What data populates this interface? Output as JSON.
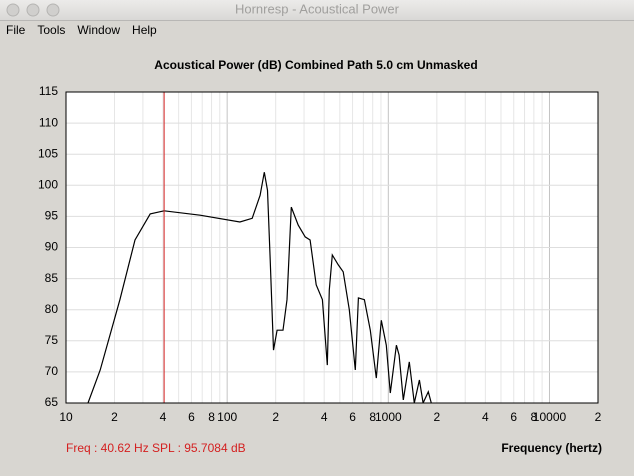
{
  "window": {
    "title": "Hornresp - Acoustical Power",
    "menu": [
      "File",
      "Tools",
      "Window",
      "Help"
    ]
  },
  "chart_data": {
    "type": "line",
    "title": "Acoustical Power (dB)   Combined   Path 5.0 cm   Unmasked",
    "xlabel": "Frequency (hertz)",
    "xscale": "log",
    "xlim": [
      10,
      20000
    ],
    "ylim": [
      65,
      115
    ],
    "yticks": [
      65,
      70,
      75,
      80,
      85,
      90,
      95,
      100,
      105,
      110,
      115
    ],
    "xticks": [
      10,
      {
        "value": 20,
        "label": "2"
      },
      {
        "value": 40,
        "label": "4"
      },
      {
        "value": 60,
        "label": "6"
      },
      {
        "value": 80,
        "label": "8"
      },
      100,
      {
        "value": 200,
        "label": "2"
      },
      {
        "value": 400,
        "label": "4"
      },
      {
        "value": 600,
        "label": "6"
      },
      {
        "value": 800,
        "label": "8"
      },
      1000,
      {
        "value": 2000,
        "label": "2"
      },
      {
        "value": 4000,
        "label": "4"
      },
      {
        "value": 6000,
        "label": "6"
      },
      {
        "value": 8000,
        "label": "8"
      },
      10000,
      {
        "value": 20000,
        "label": "2"
      }
    ],
    "xminor": [
      30,
      50,
      70,
      90,
      300,
      500,
      700,
      900,
      3000,
      5000,
      7000,
      9000
    ],
    "grid": true,
    "color": "#000000",
    "x": [
      13.7,
      16.3,
      21.6,
      26.8,
      33.3,
      40.6,
      67.9,
      120,
      143,
      160,
      170,
      178,
      185,
      194,
      204,
      222,
      235,
      250,
      276,
      305,
      327,
      357,
      390,
      418,
      430,
      449,
      489,
      525,
      573,
      624,
      652,
      710,
      773,
      842,
      905,
      972,
      1028,
      1122,
      1167,
      1239,
      1350,
      1449,
      1558,
      1643,
      1770,
      1848
    ],
    "values": [
      65,
      70.3,
      81.6,
      91.2,
      95.4,
      95.9,
      95.2,
      94.1,
      94.7,
      98.4,
      102.1,
      99.2,
      88,
      73.5,
      76.7,
      76.7,
      81.6,
      96.5,
      93.6,
      91.7,
      91.2,
      84,
      81.6,
      71.1,
      83.2,
      88.8,
      87.2,
      86.1,
      80,
      70.3,
      81.9,
      81.6,
      76.7,
      69,
      78.3,
      74.3,
      66.6,
      74.3,
      72.7,
      65.5,
      71.6,
      65,
      68.7,
      65,
      66.8,
      65
    ],
    "cursor": {
      "x": 40.62,
      "color": "#d42020",
      "freq_label": "Freq : 40.62 Hz",
      "spl_label": "SPL : 95.7084 dB"
    }
  }
}
